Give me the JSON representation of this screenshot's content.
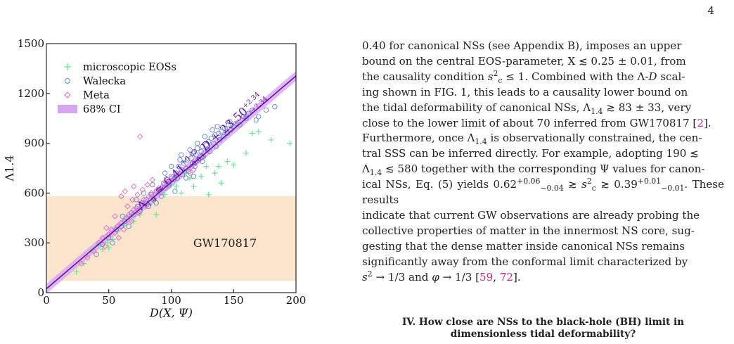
{
  "page_number": "4",
  "figure": {
    "xlabel": "D(X, Ψ)",
    "ylabel": "Λ1.4",
    "fit_label": "Λ1.4 ≈ 6.41+0.03−0.03 D + 23.50+2.34−2.34",
    "region_label": "GW170817",
    "x_ticks": [
      "0",
      "50",
      "100",
      "150",
      "200"
    ],
    "y_ticks": [
      "0",
      "300",
      "600",
      "900",
      "1200",
      "1500"
    ],
    "legend": [
      {
        "label": "microscopic EOSs",
        "marker": "plus",
        "color": "#56e88a"
      },
      {
        "label": "Walecka",
        "marker": "circle",
        "color": "#5b84d8"
      },
      {
        "label": "Meta",
        "marker": "diamond",
        "color": "#e56ac0"
      },
      {
        "label": "68% CI",
        "marker": "band",
        "color": "#d6a6f2"
      }
    ],
    "colors": {
      "fit_line": "#6a0ea8",
      "ci_band": "#d6a6f2",
      "gw_region": "#fbe3cc",
      "microscopic": "#56e88a",
      "walecka": "#5b84d8",
      "meta": "#e56ac0"
    }
  },
  "chart_data": {
    "type": "scatter",
    "title": "",
    "xlabel": "D(X, Ψ)",
    "ylabel": "Λ1.4",
    "xlim": [
      0,
      200
    ],
    "ylim": [
      0,
      1500
    ],
    "grid": false,
    "legend_position": "top-left",
    "fit": {
      "slope": 6.41,
      "slope_err": 0.03,
      "intercept": 23.5,
      "intercept_err": 2.34
    },
    "ci_band_halfwidth": 30,
    "region": {
      "label": "GW170817",
      "ymin": 70,
      "ymax": 580
    },
    "series": [
      {
        "name": "microscopic EOSs",
        "marker": "plus",
        "points": [
          [
            24,
            125
          ],
          [
            30,
            175
          ],
          [
            36,
            255
          ],
          [
            42,
            290
          ],
          [
            45,
            262
          ],
          [
            49,
            300
          ],
          [
            50,
            270
          ],
          [
            53,
            320
          ],
          [
            57,
            370
          ],
          [
            62,
            405
          ],
          [
            64,
            455
          ],
          [
            70,
            430
          ],
          [
            75,
            470
          ],
          [
            80,
            530
          ],
          [
            86,
            560
          ],
          [
            88,
            470
          ],
          [
            92,
            610
          ],
          [
            95,
            590
          ],
          [
            100,
            650
          ],
          [
            104,
            640
          ],
          [
            108,
            600
          ],
          [
            112,
            720
          ],
          [
            115,
            690
          ],
          [
            118,
            640
          ],
          [
            124,
            700
          ],
          [
            128,
            760
          ],
          [
            130,
            590
          ],
          [
            135,
            720
          ],
          [
            138,
            760
          ],
          [
            140,
            660
          ],
          [
            145,
            790
          ],
          [
            150,
            770
          ],
          [
            160,
            840
          ],
          [
            165,
            960
          ],
          [
            170,
            970
          ],
          [
            180,
            920
          ],
          [
            195,
            900
          ]
        ]
      },
      {
        "name": "Walecka",
        "marker": "circle",
        "points": [
          [
            40,
            230
          ],
          [
            45,
            290
          ],
          [
            50,
            330
          ],
          [
            53,
            300
          ],
          [
            56,
            380
          ],
          [
            60,
            400
          ],
          [
            63,
            430
          ],
          [
            66,
            400
          ],
          [
            68,
            480
          ],
          [
            70,
            470
          ],
          [
            73,
            520
          ],
          [
            75,
            490
          ],
          [
            77,
            540
          ],
          [
            80,
            560
          ],
          [
            82,
            520
          ],
          [
            84,
            590
          ],
          [
            86,
            560
          ],
          [
            88,
            610
          ],
          [
            90,
            620
          ],
          [
            92,
            580
          ],
          [
            94,
            660
          ],
          [
            95,
            630
          ],
          [
            97,
            680
          ],
          [
            98,
            650
          ],
          [
            100,
            700
          ],
          [
            102,
            680
          ],
          [
            104,
            720
          ],
          [
            105,
            690
          ],
          [
            106,
            760
          ],
          [
            108,
            740
          ],
          [
            109,
            710
          ],
          [
            110,
            780
          ],
          [
            112,
            750
          ],
          [
            113,
            800
          ],
          [
            114,
            730
          ],
          [
            116,
            810
          ],
          [
            117,
            780
          ],
          [
            118,
            840
          ],
          [
            119,
            760
          ],
          [
            120,
            830
          ],
          [
            121,
            870
          ],
          [
            122,
            800
          ],
          [
            124,
            850
          ],
          [
            125,
            880
          ],
          [
            126,
            820
          ],
          [
            128,
            890
          ],
          [
            129,
            860
          ],
          [
            130,
            910
          ],
          [
            131,
            850
          ],
          [
            132,
            930
          ],
          [
            134,
            900
          ],
          [
            135,
            950
          ],
          [
            136,
            880
          ],
          [
            138,
            960
          ],
          [
            139,
            920
          ],
          [
            140,
            970
          ],
          [
            142,
            940
          ],
          [
            143,
            990
          ],
          [
            145,
            960
          ],
          [
            146,
            1010
          ],
          [
            148,
            980
          ],
          [
            150,
            1000
          ],
          [
            152,
            1020
          ],
          [
            155,
            1010
          ],
          [
            158,
            1060
          ],
          [
            160,
            1050
          ],
          [
            162,
            1080
          ],
          [
            165,
            1100
          ],
          [
            168,
            1040
          ],
          [
            170,
            1060
          ],
          [
            176,
            1100
          ],
          [
            183,
            1120
          ],
          [
            100,
            760
          ],
          [
            95,
            720
          ],
          [
            108,
            830
          ],
          [
            125,
            790
          ],
          [
            88,
            540
          ],
          [
            78,
            600
          ],
          [
            115,
            860
          ],
          [
            133,
            980
          ],
          [
            147,
            1030
          ],
          [
            103,
            610
          ],
          [
            112,
            690
          ],
          [
            121,
            900
          ],
          [
            127,
            940
          ],
          [
            137,
            1000
          ],
          [
            118,
            700
          ],
          [
            85,
            650
          ],
          [
            72,
            560
          ],
          [
            61,
            460
          ],
          [
            107,
            800
          ]
        ]
      },
      {
        "name": "Meta",
        "marker": "diamond",
        "points": [
          [
            28,
            175
          ],
          [
            33,
            210
          ],
          [
            38,
            250
          ],
          [
            42,
            300
          ],
          [
            45,
            330
          ],
          [
            47,
            280
          ],
          [
            50,
            350
          ],
          [
            52,
            380
          ],
          [
            55,
            360
          ],
          [
            57,
            400
          ],
          [
            60,
            420
          ],
          [
            62,
            380
          ],
          [
            64,
            450
          ],
          [
            66,
            470
          ],
          [
            68,
            430
          ],
          [
            70,
            500
          ],
          [
            72,
            510
          ],
          [
            74,
            480
          ],
          [
            76,
            540
          ],
          [
            78,
            560
          ],
          [
            80,
            520
          ],
          [
            82,
            580
          ],
          [
            84,
            600
          ],
          [
            86,
            570
          ],
          [
            88,
            610
          ],
          [
            90,
            630
          ],
          [
            92,
            600
          ],
          [
            94,
            650
          ],
          [
            96,
            670
          ],
          [
            98,
            640
          ],
          [
            100,
            690
          ],
          [
            104,
            710
          ],
          [
            108,
            730
          ],
          [
            112,
            750
          ],
          [
            115,
            720
          ],
          [
            118,
            740
          ],
          [
            120,
            790
          ],
          [
            60,
            580
          ],
          [
            63,
            610
          ],
          [
            70,
            640
          ],
          [
            75,
            940
          ],
          [
            48,
            390
          ],
          [
            55,
            460
          ],
          [
            58,
            330
          ],
          [
            65,
            520
          ],
          [
            69,
            560
          ],
          [
            73,
            590
          ],
          [
            77,
            620
          ],
          [
            81,
            650
          ],
          [
            85,
            680
          ]
        ]
      }
    ]
  },
  "text_column": {
    "line1": "0.40 for canonical NSs (see Appendix B), imposes an upper",
    "line2": "bound on the central EOS-parameter, X ≲ 0.25 ± 0.01, from",
    "line3a": "the causality condition ",
    "line3b": "s",
    "line3c": "c",
    "line3d": "2",
    "line3e": " ≤ 1. Combined with the Λ-",
    "line3f": "D",
    "line3g": " scal-",
    "line4": "ing shown in FIG. 1, this leads to a causality lower bound on",
    "line5a": "the tidal deformability of canonical NSs, Λ",
    "line5b": "1.4",
    "line5c": " ≳ 83 ± 33, very",
    "line6a": "close to the lower limit of about 70 inferred from GW170817 [",
    "line6b": "2",
    "line6c": "].",
    "line7a": "Furthermore, once Λ",
    "line7b": "1.4",
    "line7c": " is observationally constrained, the cen-",
    "line8": "tral SSS can be inferred directly. For example, adopting 190 ≲",
    "line9a": "Λ",
    "line9b": "1.4",
    "line9c": " ≲ 580 together with the corresponding Ψ values for canon-",
    "line10a": "ical NSs, Eq. (5) yields 0.62",
    "line10b": "+0.06",
    "line10c": "−0.04",
    "line10d": " ≳ ",
    "line10e": "s",
    "line10f": "c",
    "line10g": "2",
    "line10h": " ≳ 0.39",
    "line10i": "+0.01",
    "line10j": "−0.01",
    "line10k": ". These results",
    "line11": "indicate that current GW observations are already probing the",
    "line12": "collective properties of matter in the innermost NS core, sug-",
    "line13": "gesting that the dense matter inside canonical NSs remains",
    "line14": "significantly away from the conformal limit characterized by",
    "line15a": "s",
    "line15b": "2",
    "line15c": " → 1/3 and ",
    "line15d": "φ",
    "line15e": " → 1/3 [",
    "line15f": "59",
    "line15g": ", ",
    "line15h": "72",
    "line15i": "]."
  },
  "section_heading": {
    "line1": "IV.  How close are NSs to the black-hole (BH) limit in",
    "line2": "dimensionless tidal deformability?"
  }
}
